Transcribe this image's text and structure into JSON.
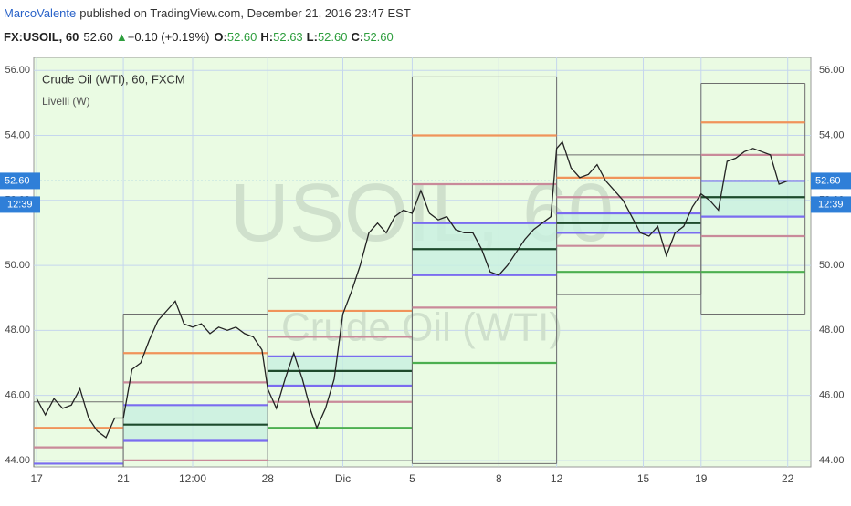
{
  "header": {
    "author": "MarcoValente",
    "published": "published on TradingView.com, December 21, 2016 23:47 EST"
  },
  "quote": {
    "symbol": "FX:USOIL, 60",
    "last": "52.60",
    "change": "+0.10 (+0.19%)",
    "open_label": "O:",
    "open": "52.60",
    "high_label": "H:",
    "high": "52.63",
    "low_label": "L:",
    "low": "52.60",
    "close_label": "C:",
    "close": "52.60"
  },
  "chart_data": {
    "type": "line",
    "title": "Crude Oil (WTI), 60, FXCM",
    "indicator": "Livelli (W)",
    "watermark": "USOIL, 60",
    "watermark_subtitle": "Crude Oil (WTI)",
    "x": [
      -3.0,
      -2.7,
      -2.4,
      -2.1,
      -1.8,
      -1.5,
      -1.2,
      -0.9,
      -0.6,
      -0.3,
      0.0,
      0.3,
      0.6,
      0.9,
      1.2,
      1.5,
      1.8,
      2.1,
      2.4,
      2.7,
      3.0,
      3.3,
      3.6,
      3.9,
      4.2,
      4.5,
      4.8,
      5.0,
      5.3,
      5.6,
      5.9,
      6.2,
      6.5,
      6.7,
      7.0,
      7.3,
      7.6,
      7.9,
      8.2,
      8.5,
      8.8,
      9.1,
      9.4,
      9.7,
      10.0,
      10.3,
      10.6,
      10.9,
      11.2,
      11.5,
      11.8,
      12.1,
      12.4,
      12.7,
      13.0,
      13.3,
      13.6,
      13.9,
      14.2,
      14.5,
      14.8,
      15.0,
      15.2,
      15.5,
      15.8,
      16.1,
      16.4,
      16.7,
      17.0,
      17.3,
      17.6,
      17.9,
      18.2,
      18.5,
      18.8,
      19.1,
      19.4,
      19.7,
      20.0,
      20.3,
      20.6,
      20.9,
      21.2,
      21.5,
      21.8,
      22.1,
      22.4,
      22.7,
      23.0
    ],
    "series": [
      {
        "color": "#222222",
        "values": [
          45.9,
          45.4,
          45.9,
          45.6,
          45.7,
          46.2,
          45.3,
          44.9,
          44.7,
          45.3,
          45.3,
          46.8,
          47.0,
          47.7,
          48.3,
          48.6,
          48.9,
          48.2,
          48.1,
          48.2,
          47.9,
          48.1,
          48.0,
          48.1,
          47.9,
          47.8,
          47.4,
          46.2,
          45.6,
          46.5,
          47.3,
          46.5,
          45.5,
          45.0,
          45.6,
          46.5,
          48.5,
          49.2,
          50.0,
          51.0,
          51.3,
          51.0,
          51.5,
          51.7,
          51.6,
          52.3,
          51.6,
          51.4,
          51.5,
          51.1,
          51.0,
          51.0,
          50.5,
          49.8,
          49.7,
          50.0,
          50.4,
          50.8,
          51.1,
          51.3,
          51.5,
          53.6,
          53.8,
          53.0,
          52.7,
          52.8,
          53.1,
          52.6,
          52.3,
          52.0,
          51.5,
          51.0,
          50.9,
          51.2,
          50.3,
          51.0,
          51.2,
          51.8,
          52.2,
          52.0,
          51.7,
          53.2,
          53.3,
          53.5,
          53.6,
          53.5,
          53.4,
          52.5,
          52.6
        ]
      }
    ],
    "levels": {
      "edges": [
        -3.1,
        0,
        5,
        10,
        15,
        20,
        23.6
      ],
      "lines": [
        {
          "color": "#6e6e6e",
          "values": [
            45.8,
            48.5,
            49.6,
            55.8,
            53.4,
            55.6
          ]
        },
        {
          "color": "#f0935a",
          "values": [
            45.0,
            47.3,
            48.6,
            54.0,
            52.7,
            54.4
          ]
        },
        {
          "color": "#c98a9a",
          "values": [
            44.4,
            46.4,
            47.8,
            52.5,
            52.1,
            53.4
          ]
        },
        {
          "color": "#7a6cf0",
          "values": [
            43.9,
            45.7,
            47.2,
            51.3,
            51.6,
            52.6
          ]
        },
        {
          "color": "#1d4a2c",
          "values": [
            null,
            45.1,
            46.75,
            50.5,
            51.3,
            52.1
          ]
        },
        {
          "color": "#7a6cf0",
          "values": [
            null,
            44.6,
            46.3,
            49.7,
            51.0,
            51.5
          ]
        },
        {
          "color": "#c98a9a",
          "values": [
            null,
            44.0,
            45.8,
            48.7,
            50.6,
            50.9
          ]
        },
        {
          "color": "#4caf50",
          "values": [
            null,
            null,
            45.0,
            47.0,
            49.8,
            49.8
          ]
        },
        {
          "color": "#6e6e6e",
          "values": [
            null,
            null,
            44.0,
            43.9,
            49.1,
            48.5
          ]
        }
      ]
    },
    "last_price": {
      "value": 52.6,
      "label": "52.60"
    },
    "countdown": "12:39",
    "xlim": [
      -3.1,
      23.8
    ],
    "ylim": [
      43.8,
      56.4
    ],
    "xticks": [
      {
        "value": -3,
        "label": "17"
      },
      {
        "value": 0,
        "label": "21"
      },
      {
        "value": 2.4,
        "label": "12:00"
      },
      {
        "value": 5,
        "label": "28"
      },
      {
        "value": 7.6,
        "label": "Dic"
      },
      {
        "value": 10,
        "label": "5"
      },
      {
        "value": 13,
        "label": "8"
      },
      {
        "value": 15,
        "label": "12"
      },
      {
        "value": 18,
        "label": "15"
      },
      {
        "value": 20,
        "label": "19"
      },
      {
        "value": 23,
        "label": "22"
      }
    ],
    "yticks": [
      {
        "value": 44,
        "label": "44.00"
      },
      {
        "value": 46,
        "label": "46.00"
      },
      {
        "value": 48,
        "label": "48.00"
      },
      {
        "value": 50,
        "label": "50.00"
      },
      {
        "value": 52,
        "label": "52.00"
      },
      {
        "value": 54,
        "label": "54.00"
      },
      {
        "value": 56,
        "label": "56.00"
      }
    ],
    "grid": true
  }
}
